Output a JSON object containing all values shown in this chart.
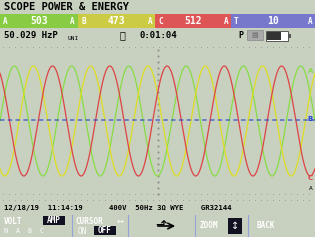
{
  "title": "SCOPE POWER & ENERGY",
  "bg_color": "#c8d0c0",
  "groups": [
    {
      "label": "A",
      "val": "503",
      "unit": "A",
      "color": "#88cc44"
    },
    {
      "label": "B",
      "val": "473",
      "unit": "A",
      "color": "#cccc44"
    },
    {
      "label": "C",
      "val": "512",
      "unit": "A",
      "color": "#dd5555"
    },
    {
      "label": "T",
      "val": "10",
      "unit": "A",
      "color": "#7777cc"
    }
  ],
  "freq_text": "50.029 HzP",
  "sub_text": "UNI",
  "clock_text": "0:01:04",
  "wave_color_A": "#88dd44",
  "wave_color_B": "#dddd22",
  "wave_color_C": "#dd4444",
  "wave_color_T": "#2244cc",
  "amplitude": 0.55,
  "num_cycles": 5.5,
  "phase_shift_deg": 120,
  "bottom_text": "12/18/19  11:14:19      400V  50Hz 3Ω WYE    GR32144",
  "footer_bg": "#5577cc",
  "dot_color": "#aaaaaa",
  "label_A": "A",
  "label_B": "B",
  "label_C": "C"
}
